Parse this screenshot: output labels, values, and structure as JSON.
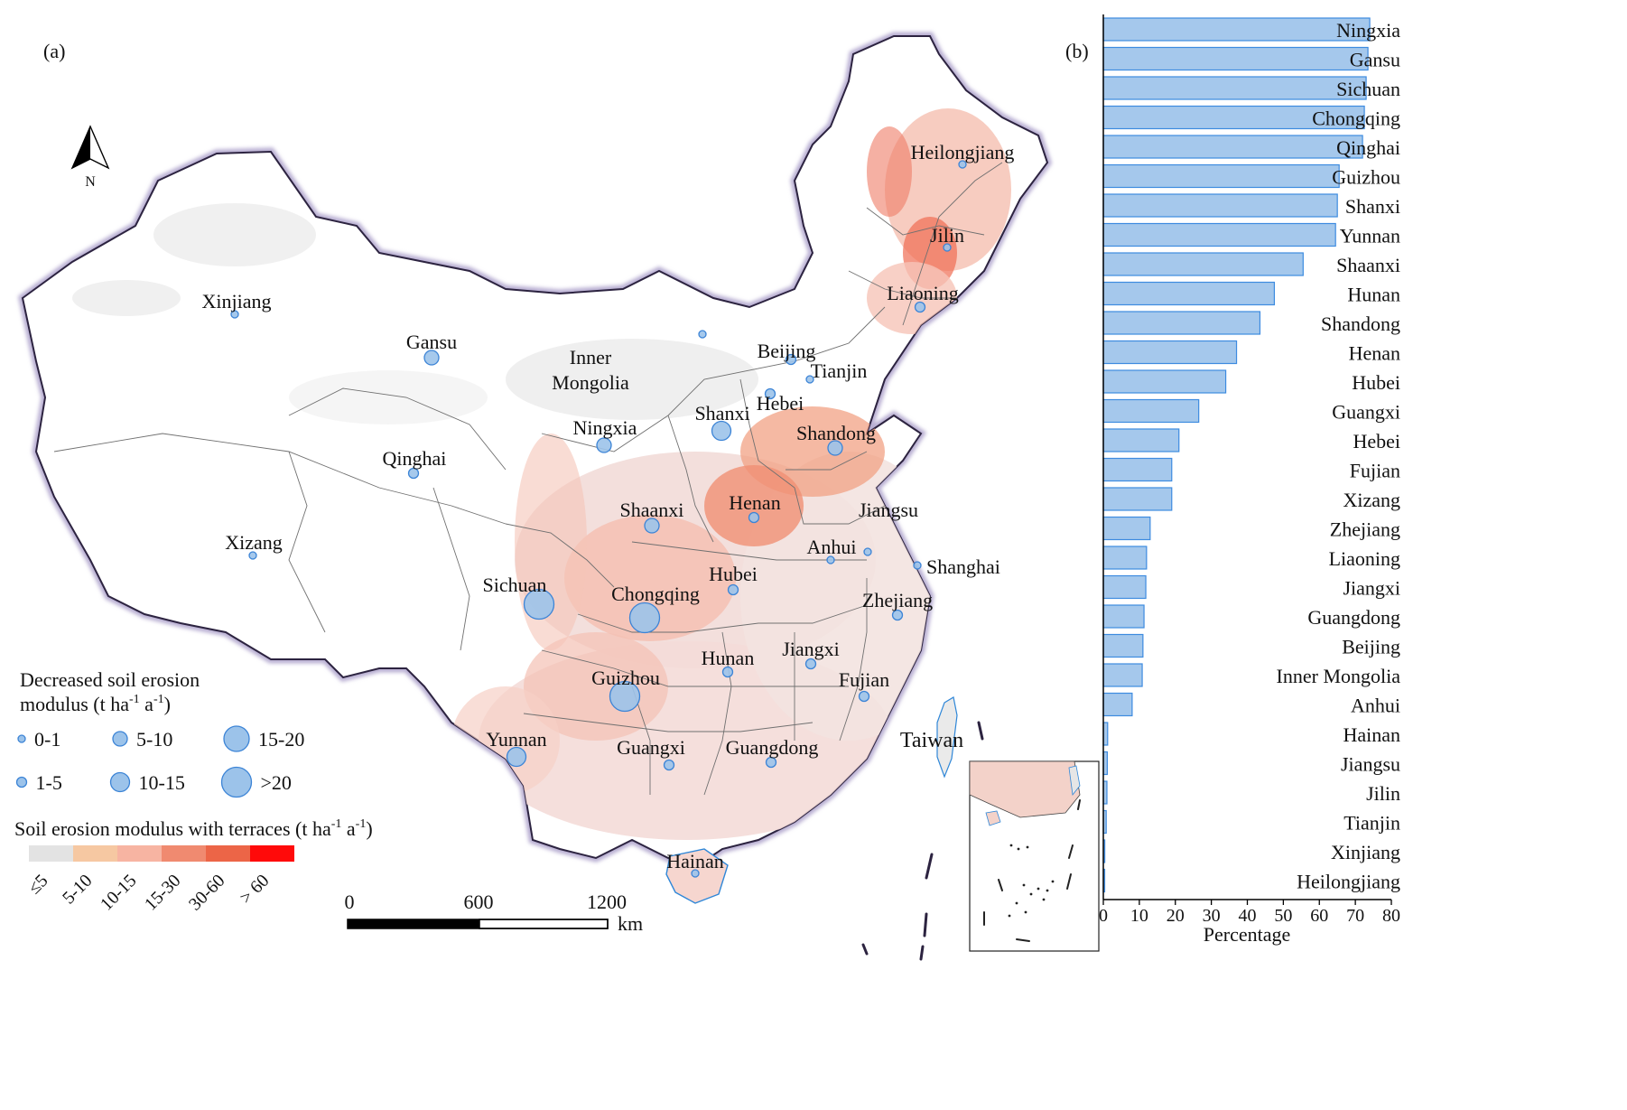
{
  "panel_labels": {
    "a": "(a)",
    "b": "(b)"
  },
  "north": "N",
  "colors": {
    "bubble_fill": "#9cc3ea",
    "bubble_stroke": "#3c84d6",
    "boundary": "#6f6f6f",
    "outline": "#2c2340",
    "coast": "#2f87d8",
    "bar_fill": "#a5c8ec",
    "bar_stroke": "#3d8be0"
  },
  "provinces": [
    {
      "name": "Heilongjiang",
      "label": "Heilongjiang",
      "class": "0-1"
    },
    {
      "name": "Jilin",
      "label": "Jilin",
      "class": "0-1"
    },
    {
      "name": "Liaoning",
      "label": "Liaoning",
      "class": "1-5"
    },
    {
      "name": "Xinjiang",
      "label": "Xinjiang",
      "class": "0-1"
    },
    {
      "name": "Gansu",
      "label": "Gansu",
      "class": "5-10"
    },
    {
      "name": "Inner Mongolia",
      "label": "Inner Mongolia",
      "class": "0-1"
    },
    {
      "name": "Beijing",
      "label": "Beijing",
      "class": "1-5"
    },
    {
      "name": "Tianjin",
      "label": "Tianjin",
      "class": "0-1"
    },
    {
      "name": "Hebei",
      "label": "Hebei",
      "class": "1-5"
    },
    {
      "name": "Ningxia",
      "label": "Ningxia",
      "class": "5-10"
    },
    {
      "name": "Shanxi",
      "label": "Shanxi",
      "class": "10-15"
    },
    {
      "name": "Shandong",
      "label": "Shandong",
      "class": "5-10"
    },
    {
      "name": "Qinghai",
      "label": "Qinghai",
      "class": "1-5"
    },
    {
      "name": "Shaanxi",
      "label": "Shaanxi",
      "class": "5-10"
    },
    {
      "name": "Henan",
      "label": "Henan",
      "class": "1-5"
    },
    {
      "name": "Jiangsu",
      "label": "Jiangsu",
      "class": "0-1"
    },
    {
      "name": "Xizang",
      "label": "Xizang",
      "class": "0-1"
    },
    {
      "name": "Anhui",
      "label": "Anhui",
      "class": "0-1"
    },
    {
      "name": "Shanghai",
      "label": "Shanghai",
      "class": "0-1"
    },
    {
      "name": "Sichuan",
      "label": "Sichuan",
      "class": ">20"
    },
    {
      "name": "Chongqing",
      "label": "Chongqing",
      "class": ">20"
    },
    {
      "name": "Hubei",
      "label": "Hubei",
      "class": "1-5"
    },
    {
      "name": "Zhejiang",
      "label": "Zhejiang",
      "class": "1-5"
    },
    {
      "name": "Hunan",
      "label": "Hunan",
      "class": "1-5"
    },
    {
      "name": "Jiangxi",
      "label": "Jiangxi",
      "class": "1-5"
    },
    {
      "name": "Guizhou",
      "label": "Guizhou",
      "class": ">20"
    },
    {
      "name": "Fujian",
      "label": "Fujian",
      "class": "1-5"
    },
    {
      "name": "Yunnan",
      "label": "Yunnan",
      "class": "10-15"
    },
    {
      "name": "Guangxi",
      "label": "Guangxi",
      "class": "1-5"
    },
    {
      "name": "Guangdong",
      "label": "Guangdong",
      "class": "1-5"
    },
    {
      "name": "Taiwan",
      "label": "Taiwan",
      "class": ""
    },
    {
      "name": "Hainan",
      "label": "Hainan",
      "class": "0-1"
    }
  ],
  "bubble_legend": {
    "title_line1": "Decreased soil erosion",
    "title_line2": "modulus  (t ha",
    "title_sup1": "-1",
    "title_mid": " a",
    "title_sup2": "-1",
    "title_end": ")",
    "classes": [
      "0-1",
      "5-10",
      "15-20",
      "1-5",
      "10-15",
      ">20"
    ]
  },
  "color_legend": {
    "title": "Soil erosion modulus with terraces (t ha",
    "title_sup1": "-1",
    "title_mid": " a",
    "title_sup2": "-1",
    "title_end": ")",
    "classes": [
      {
        "label": "≤5",
        "color": "#e3e3e3"
      },
      {
        "label": "5-10",
        "color": "#f6c8a2"
      },
      {
        "label": "10-15",
        "color": "#f7b4a2"
      },
      {
        "label": "15-30",
        "color": "#f08a70"
      },
      {
        "label": "30-60",
        "color": "#ec6547"
      },
      {
        "label": "> 60",
        "color": "#ff0a0a"
      }
    ]
  },
  "scale_bar": {
    "ticks": [
      "0",
      "600",
      "1200"
    ],
    "unit": "km"
  },
  "chart_data": {
    "type": "bar",
    "orientation": "horizontal",
    "categories": [
      "Ningxia",
      "Gansu",
      "Sichuan",
      "Chongqing",
      "Qinghai",
      "Guizhou",
      "Shanxi",
      "Yunnan",
      "Shaanxi",
      "Hunan",
      "Shandong",
      "Henan",
      "Hubei",
      "Guangxi",
      "Hebei",
      "Fujian",
      "Xizang",
      "Zhejiang",
      "Liaoning",
      "Jiangxi",
      "Guangdong",
      "Beijing",
      "Inner Mongolia",
      "Anhui",
      "Hainan",
      "Jiangsu",
      "Jilin",
      "Tianjin",
      "Xinjiang",
      "Heilongjiang"
    ],
    "values": [
      74,
      73.5,
      73,
      72.5,
      72,
      65.5,
      65,
      64.5,
      55.5,
      47.5,
      43.5,
      37,
      34,
      26.5,
      21,
      19,
      19,
      13,
      12,
      11.8,
      11.3,
      11,
      10.8,
      8,
      1.2,
      1.1,
      1.0,
      0.8,
      0.4,
      0.3
    ],
    "xlabel": "Percentage",
    "xlim": [
      0,
      80
    ],
    "xticks": [
      "0",
      "10",
      "20",
      "30",
      "40",
      "50",
      "60",
      "70",
      "80"
    ],
    "grid": false
  }
}
